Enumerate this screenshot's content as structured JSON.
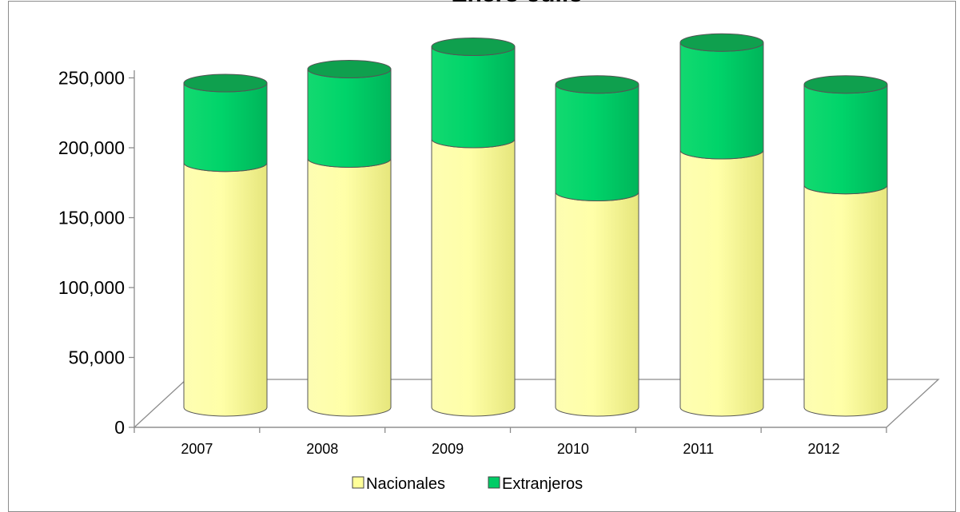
{
  "chart_data": {
    "type": "bar",
    "stacked": true,
    "style": "3d-cylinder",
    "title": "Enero-Julio",
    "categories": [
      "2007",
      "2008",
      "2009",
      "2010",
      "2011",
      "2012"
    ],
    "series": [
      {
        "name": "Nacionales",
        "color": "#ffff99",
        "values": [
          175000,
          178000,
          192000,
          154000,
          184000,
          159000
        ]
      },
      {
        "name": "Extranjeros",
        "color": "#00cc66",
        "values": [
          57000,
          64000,
          66000,
          77000,
          77000,
          72000
        ]
      }
    ],
    "yticks": [
      "0",
      "50,000",
      "100,000",
      "150,000",
      "200,000",
      "250,000"
    ],
    "ylim": [
      0,
      250000
    ],
    "legend": "bottom",
    "grid": false
  }
}
